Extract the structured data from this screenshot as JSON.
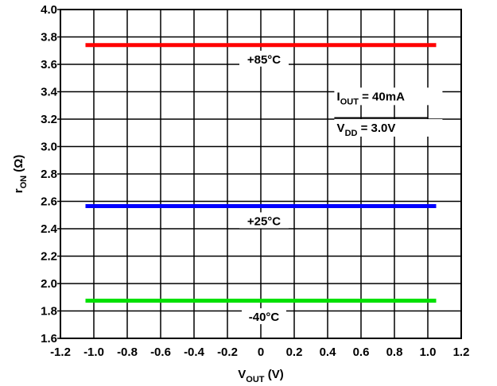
{
  "chart_data": {
    "type": "line",
    "x": [
      -1.05,
      -1.0,
      -0.5,
      0.0,
      0.5,
      1.0,
      1.05
    ],
    "series": [
      {
        "name": "+85°C",
        "values": [
          3.74,
          3.74,
          3.74,
          3.74,
          3.74,
          3.74,
          3.74
        ],
        "color": "#ff0000"
      },
      {
        "name": "+25°C",
        "values": [
          2.565,
          2.565,
          2.565,
          2.565,
          2.565,
          2.565,
          2.565
        ],
        "color": "#0000ff"
      },
      {
        "name": "-40°C",
        "values": [
          1.875,
          1.875,
          1.875,
          1.875,
          1.875,
          1.875,
          1.875
        ],
        "color": "#00e000"
      }
    ],
    "xlim": [
      -1.2,
      1.2
    ],
    "ylim": [
      1.6,
      4.0
    ],
    "xticks": [
      "-1.2",
      "-1.0",
      "-0.8",
      "-0.6",
      "-0.4",
      "-0.2",
      "0",
      "0.2",
      "0.4",
      "0.6",
      "0.8",
      "1.0",
      "1.2"
    ],
    "xtick_values": [
      -1.2,
      -1.0,
      -0.8,
      -0.6,
      -0.4,
      -0.2,
      0,
      0.2,
      0.4,
      0.6,
      0.8,
      1.0,
      1.2
    ],
    "yticks": [
      "1.6",
      "1.8",
      "2.0",
      "2.2",
      "2.4",
      "2.6",
      "2.8",
      "3.0",
      "3.2",
      "3.4",
      "3.6",
      "3.8",
      "4.0"
    ],
    "ytick_values": [
      1.6,
      1.8,
      2.0,
      2.2,
      2.4,
      2.6,
      2.8,
      3.0,
      3.2,
      3.4,
      3.6,
      3.8,
      4.0
    ],
    "xlabel": {
      "main": "V",
      "sub": "OUT",
      "rest": " (V)"
    },
    "ylabel": {
      "main": "r",
      "sub": "ON",
      "rest": " (Ω)"
    },
    "grid": true,
    "annotations": {
      "iout": {
        "main": "I",
        "sub": "OUT",
        "rest": " = 40mA"
      },
      "vdd": {
        "main": "V",
        "sub": "DD",
        "rest": " = 3.0V"
      }
    },
    "series_labels": [
      "+85°C",
      "+25°C",
      "-40°C"
    ]
  }
}
